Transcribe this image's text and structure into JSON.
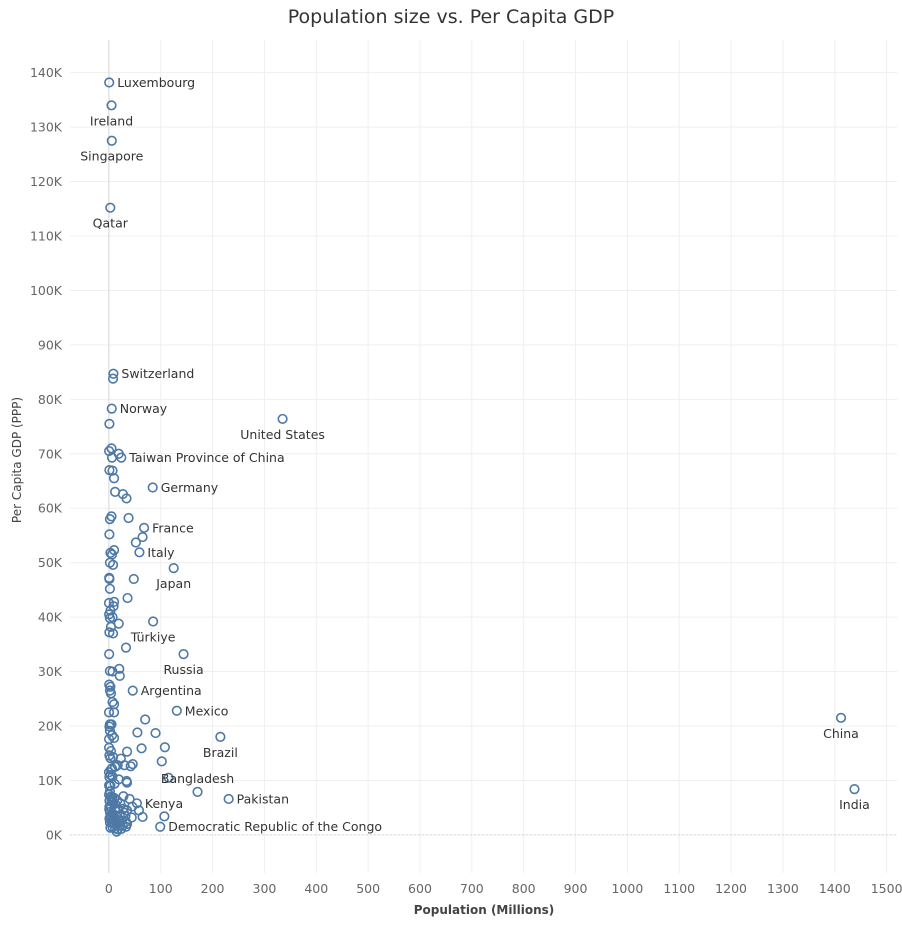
{
  "chart_data": {
    "type": "scatter",
    "title": "Population size vs. Per Capita GDP",
    "xlabel": "Population (Millions)",
    "ylabel": "Per Capita GDP (PPP)",
    "xlim": [
      -75,
      1520
    ],
    "ylim": [
      -7000,
      146000
    ],
    "xticks": [
      0,
      100,
      200,
      300,
      400,
      500,
      600,
      700,
      800,
      900,
      1000,
      1100,
      1200,
      1300,
      1400,
      1500
    ],
    "yticks": [
      0,
      10000,
      20000,
      30000,
      40000,
      50000,
      60000,
      70000,
      80000,
      90000,
      100000,
      110000,
      120000,
      130000,
      140000
    ],
    "xtick_labels": [
      "0",
      "100",
      "200",
      "300",
      "400",
      "500",
      "600",
      "700",
      "800",
      "900",
      "1000",
      "1100",
      "1200",
      "1300",
      "1400",
      "1500"
    ],
    "ytick_labels": [
      "0K",
      "10K",
      "20K",
      "30K",
      "40K",
      "50K",
      "60K",
      "70K",
      "80K",
      "90K",
      "100K",
      "110K",
      "120K",
      "130K",
      "140K"
    ],
    "grid": true,
    "point_color": "#4e79a7",
    "labeled_points": [
      {
        "label": "Luxembourg",
        "x": 0.6,
        "y": 138200,
        "pos": "right"
      },
      {
        "label": "Ireland",
        "x": 5.1,
        "y": 134000,
        "pos": "below"
      },
      {
        "label": "Singapore",
        "x": 5.6,
        "y": 127500,
        "pos": "below"
      },
      {
        "label": "Qatar",
        "x": 2.7,
        "y": 115200,
        "pos": "below"
      },
      {
        "label": "Switzerland",
        "x": 8.7,
        "y": 84700,
        "pos": "right"
      },
      {
        "label": "Norway",
        "x": 5.5,
        "y": 78300,
        "pos": "right"
      },
      {
        "label": "United States",
        "x": 335,
        "y": 76400,
        "pos": "below"
      },
      {
        "label": "Taiwan Province of China",
        "x": 23.9,
        "y": 69300,
        "pos": "right"
      },
      {
        "label": "Germany",
        "x": 84.5,
        "y": 63800,
        "pos": "right"
      },
      {
        "label": "France",
        "x": 67.9,
        "y": 56400,
        "pos": "right"
      },
      {
        "label": "Italy",
        "x": 58.9,
        "y": 51900,
        "pos": "right"
      },
      {
        "label": "Japan",
        "x": 125,
        "y": 49000,
        "pos": "below"
      },
      {
        "label": "Türkiye",
        "x": 85.3,
        "y": 39200,
        "pos": "below"
      },
      {
        "label": "Russia",
        "x": 144,
        "y": 33200,
        "pos": "below"
      },
      {
        "label": "Argentina",
        "x": 46,
        "y": 26500,
        "pos": "right"
      },
      {
        "label": "Mexico",
        "x": 131,
        "y": 22800,
        "pos": "right"
      },
      {
        "label": "Brazil",
        "x": 215,
        "y": 18000,
        "pos": "below"
      },
      {
        "label": "China",
        "x": 1412,
        "y": 21500,
        "pos": "below"
      },
      {
        "label": "India",
        "x": 1438,
        "y": 8400,
        "pos": "below"
      },
      {
        "label": "Bangladesh",
        "x": 171,
        "y": 7900,
        "pos": "above"
      },
      {
        "label": "Pakistan",
        "x": 231,
        "y": 6600,
        "pos": "right"
      },
      {
        "label": "Kenya",
        "x": 54,
        "y": 5800,
        "pos": "right"
      },
      {
        "label": "Democratic Republic of the Congo",
        "x": 99,
        "y": 1500,
        "pos": "right"
      }
    ],
    "other_points": [
      [
        1,
        75500
      ],
      [
        8,
        83800
      ],
      [
        0.4,
        70500
      ],
      [
        5,
        71000
      ],
      [
        7,
        66900
      ],
      [
        10,
        65500
      ],
      [
        1,
        67000
      ],
      [
        6,
        69300
      ],
      [
        19,
        70000
      ],
      [
        12,
        63000
      ],
      [
        27,
        62600
      ],
      [
        34,
        61800
      ],
      [
        5,
        58500
      ],
      [
        2,
        58000
      ],
      [
        38,
        58200
      ],
      [
        1,
        55200
      ],
      [
        65,
        54700
      ],
      [
        52,
        53700
      ],
      [
        10,
        52300
      ],
      [
        3,
        51800
      ],
      [
        6,
        51500
      ],
      [
        8,
        49600
      ],
      [
        2,
        50000
      ],
      [
        0.6,
        47200
      ],
      [
        1,
        47000
      ],
      [
        48,
        47000
      ],
      [
        2,
        45200
      ],
      [
        36,
        43500
      ],
      [
        10,
        42800
      ],
      [
        0.2,
        42600
      ],
      [
        9,
        42000
      ],
      [
        3,
        41200
      ],
      [
        0.5,
        40500
      ],
      [
        7,
        40000
      ],
      [
        2,
        39800
      ],
      [
        19,
        38800
      ],
      [
        4,
        38200
      ],
      [
        1,
        37200
      ],
      [
        8,
        37000
      ],
      [
        33,
        34400
      ],
      [
        0.5,
        33200
      ],
      [
        20,
        30500
      ],
      [
        2,
        30100
      ],
      [
        7,
        30000
      ],
      [
        21,
        29200
      ],
      [
        0.6,
        27600
      ],
      [
        3,
        27200
      ],
      [
        2,
        26500
      ],
      [
        4,
        26000
      ],
      [
        10,
        24000
      ],
      [
        7,
        24400
      ],
      [
        0.3,
        22500
      ],
      [
        10,
        22500
      ],
      [
        70,
        21200
      ],
      [
        5,
        20300
      ],
      [
        2,
        20300
      ],
      [
        1,
        19900
      ],
      [
        90,
        18700
      ],
      [
        55,
        18800
      ],
      [
        2,
        19100
      ],
      [
        6,
        18300
      ],
      [
        10,
        17800
      ],
      [
        0.4,
        17600
      ],
      [
        108,
        16100
      ],
      [
        63,
        15900
      ],
      [
        35,
        15300
      ],
      [
        0.4,
        16000
      ],
      [
        4,
        15400
      ],
      [
        1,
        14600
      ],
      [
        8,
        14300
      ],
      [
        23,
        14000
      ],
      [
        3,
        14100
      ],
      [
        102,
        13500
      ],
      [
        46,
        13000
      ],
      [
        42,
        12600
      ],
      [
        17,
        12800
      ],
      [
        12,
        12500
      ],
      [
        6,
        12200
      ],
      [
        30,
        12800
      ],
      [
        4,
        12000
      ],
      [
        0.2,
        11500
      ],
      [
        3,
        11000
      ],
      [
        1,
        10600
      ],
      [
        7,
        10700
      ],
      [
        115,
        10500
      ],
      [
        19,
        10200
      ],
      [
        34,
        9900
      ],
      [
        35,
        9600
      ],
      [
        11,
        9400
      ],
      [
        0.4,
        9100
      ],
      [
        3,
        9000
      ],
      [
        2,
        8000
      ],
      [
        0.3,
        7400
      ],
      [
        3,
        7000
      ],
      [
        6,
        6800
      ],
      [
        10,
        6800
      ],
      [
        28,
        7100
      ],
      [
        40,
        6600
      ],
      [
        1,
        6300
      ],
      [
        5,
        6300
      ],
      [
        8,
        5900
      ],
      [
        12,
        5700
      ],
      [
        16,
        6300
      ],
      [
        22,
        5800
      ],
      [
        1,
        5200
      ],
      [
        4,
        5000
      ],
      [
        45,
        5200
      ],
      [
        12,
        4500
      ],
      [
        17,
        4800
      ],
      [
        28,
        4800
      ],
      [
        35,
        4500
      ],
      [
        0.7,
        4700
      ],
      [
        58,
        4500
      ],
      [
        2,
        4200
      ],
      [
        6,
        4000
      ],
      [
        9,
        3800
      ],
      [
        29,
        4100
      ],
      [
        3,
        3500
      ],
      [
        14,
        3500
      ],
      [
        21,
        3600
      ],
      [
        32,
        3500
      ],
      [
        44,
        3200
      ],
      [
        65,
        3300
      ],
      [
        107,
        3400
      ],
      [
        1,
        3000
      ],
      [
        5,
        2900
      ],
      [
        9,
        2800
      ],
      [
        13,
        2900
      ],
      [
        19,
        2700
      ],
      [
        25,
        2600
      ],
      [
        33,
        2400
      ],
      [
        2,
        2300
      ],
      [
        6,
        2200
      ],
      [
        11,
        2000
      ],
      [
        17,
        2100
      ],
      [
        22,
        1800
      ],
      [
        27,
        1700
      ],
      [
        33,
        1500
      ],
      [
        7,
        1400
      ],
      [
        12,
        1200
      ],
      [
        3,
        1300
      ],
      [
        17,
        1000
      ],
      [
        24,
        1100
      ],
      [
        35,
        2000
      ],
      [
        15,
        600
      ]
    ]
  }
}
